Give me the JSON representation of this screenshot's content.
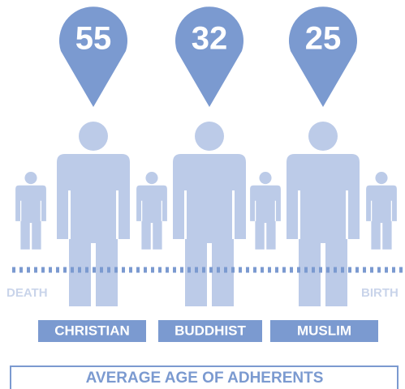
{
  "items": [
    {
      "label": "CHRISTIAN",
      "value": 55
    },
    {
      "label": "BUDDHIST",
      "value": 32
    },
    {
      "label": "MUSLIM",
      "value": 25
    }
  ],
  "start_label": "DEATH",
  "end_label": "BIRTH",
  "title": "AVERAGE AGE OF ADHERENTS"
}
